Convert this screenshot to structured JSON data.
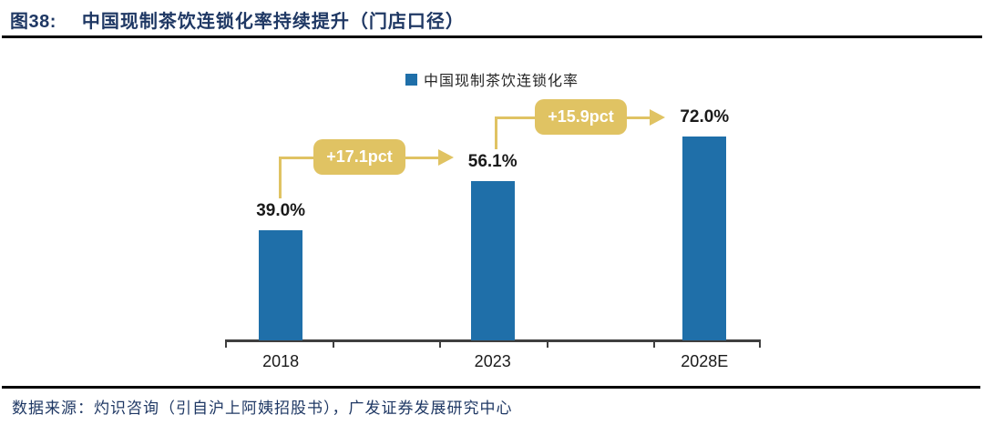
{
  "figure": {
    "label": "图38:",
    "title": "中国现制茶饮连锁化率持续提升（门店口径）",
    "source": "数据来源：灼识咨询（引自沪上阿姨招股书），广发证券发展研究中心"
  },
  "legend": {
    "label": "中国现制茶饮连锁化率"
  },
  "chart_data": {
    "type": "bar",
    "title": "中国现制茶饮连锁化率持续提升（门店口径）",
    "categories": [
      "2018",
      "2023",
      "2028E"
    ],
    "values": [
      39.0,
      56.1,
      72.0
    ],
    "value_labels": [
      "39.0%",
      "56.1%",
      "72.0%"
    ],
    "unit": "%",
    "ylim": [
      0,
      88
    ],
    "grid": false,
    "legend_entries": [
      "中国现制茶饮连锁化率"
    ],
    "legend_position": "top-center",
    "annotations": [
      {
        "text": "+17.1pct",
        "from": "2018",
        "to": "2023"
      },
      {
        "text": "+15.9pct",
        "from": "2023",
        "to": "2028E"
      }
    ],
    "colors": {
      "bar": "#1F6FA9",
      "annotation": "#E0C363",
      "title": "#1F3864"
    }
  }
}
